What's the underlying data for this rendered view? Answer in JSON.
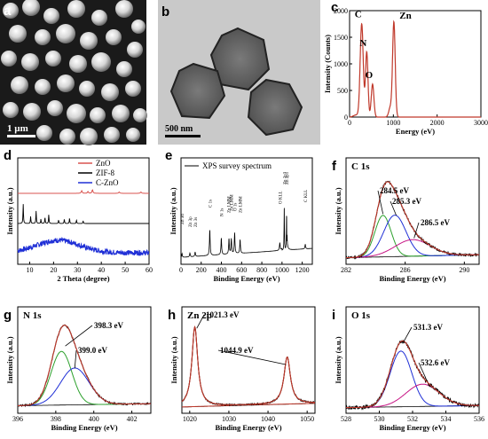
{
  "images": {
    "a": {
      "label": "a",
      "scale": "1 µm"
    },
    "b": {
      "label": "b",
      "scale": "500 nm"
    }
  },
  "chart_data": [
    {
      "id": "c",
      "type": "line",
      "label": "c",
      "title": "",
      "xlabel": "Energy (eV)",
      "ylabel": "Intensity (Counts)",
      "xlim": [
        0,
        3000
      ],
      "ylim": [
        0,
        2000
      ],
      "xticks": [
        "0",
        "1000",
        "2000",
        "3000"
      ],
      "yticks": [
        "0",
        "500",
        "1000",
        "1500",
        "2000"
      ],
      "annotations": [
        "C",
        "N",
        "O",
        "Zn"
      ],
      "series": [
        {
          "x": [
            0,
            150,
            277,
            400,
            392,
            525,
            600,
            800,
            930,
            1012,
            1100,
            1300,
            2000,
            3000
          ],
          "y": [
            0,
            80,
            1750,
            120,
            1220,
            620,
            60,
            40,
            180,
            1780,
            60,
            10,
            0,
            0
          ],
          "color": "#c0392b"
        }
      ]
    },
    {
      "id": "d",
      "type": "line",
      "label": "d",
      "xlabel": "2 Theta (degree)",
      "ylabel": "Intensity (a.u.)",
      "xlim": [
        5,
        60
      ],
      "xticks": [
        "10",
        "20",
        "30",
        "40",
        "50",
        "60"
      ],
      "legend": [
        "ZnO",
        "ZIF-8",
        "C-ZnO"
      ],
      "legend_colors": [
        "#d9534f",
        "#000000",
        "#1f2fd6"
      ],
      "series": [
        {
          "name": "ZnO",
          "peaks_x": [
            31.8,
            34.4,
            36.3,
            47.5,
            56.6
          ]
        },
        {
          "name": "ZIF-8",
          "peaks_x": [
            7.3,
            10.4,
            12.7,
            14.7,
            16.4,
            18.0,
            22.1,
            24.5,
            26.7,
            29.6,
            32.4
          ]
        },
        {
          "name": "C-ZnO",
          "peaks_x": []
        }
      ]
    },
    {
      "id": "e",
      "type": "line",
      "label": "e",
      "xlabel": "Binding Energy (eV)",
      "ylabel": "Intensity (a.u.)",
      "xlim": [
        0,
        1300
      ],
      "xticks": [
        "0",
        "200",
        "400",
        "600",
        "800",
        "1000",
        "1200"
      ],
      "legend": [
        "XPS survey spectrum"
      ],
      "peak_labels": [
        "Zn 3d",
        "Zn 3p",
        "Zn 3s",
        "C 1s",
        "N 1s",
        "Zn LMM",
        "Zn LMM",
        "O 1s",
        "Zn LMM",
        "O KLL",
        "Zn 2p3",
        "Zn 2p1",
        "C KLL"
      ]
    },
    {
      "id": "f",
      "type": "line",
      "label": "f",
      "title": "C 1s",
      "xlabel": "Binding Energy (eV)",
      "ylabel": "Intensity (a.u.)",
      "xlim": [
        282,
        291
      ],
      "xticks": [
        "282",
        "286",
        "290"
      ],
      "annotations": [
        "284.5 eV",
        "285.3 eV",
        "286.5 eV"
      ],
      "components_center": [
        284.5,
        285.3,
        286.5
      ]
    },
    {
      "id": "g",
      "type": "line",
      "label": "g",
      "title": "N 1s",
      "xlabel": "Binding Energy (eV)",
      "ylabel": "Intensity (a.u.)",
      "xlim": [
        396,
        403
      ],
      "xticks": [
        "396",
        "398",
        "400",
        "402"
      ],
      "annotations": [
        "398.3 eV",
        "399.0 eV"
      ],
      "components_center": [
        398.3,
        399.0
      ]
    },
    {
      "id": "h",
      "type": "line",
      "label": "h",
      "title": "Zn 2p",
      "xlabel": "Binding Energy (eV)",
      "ylabel": "Intensity (a.u.)",
      "xlim": [
        1018,
        1052
      ],
      "xticks": [
        "1020",
        "1030",
        "1040",
        "1050"
      ],
      "annotations": [
        "1021.3 eV",
        "1044.9 eV"
      ],
      "components_center": [
        1021.3,
        1044.9
      ]
    },
    {
      "id": "i",
      "type": "line",
      "label": "i",
      "title": "O 1s",
      "xlabel": "Binding Energy (eV)",
      "ylabel": "Intensity (a.u.)",
      "xlim": [
        528,
        536
      ],
      "xticks": [
        "528",
        "530",
        "532",
        "534",
        "536"
      ],
      "annotations": [
        "531.3 eV",
        "532.6 eV"
      ],
      "components_center": [
        531.3,
        532.6
      ]
    }
  ]
}
